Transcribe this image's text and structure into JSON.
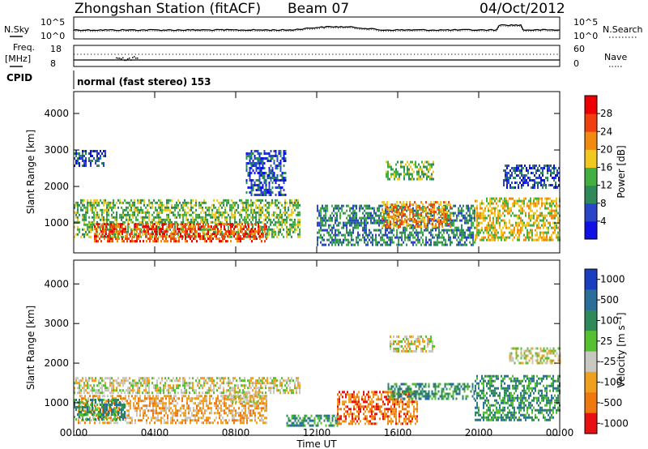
{
  "header": {
    "station": "Zhongshan Station (fitACF)",
    "beam": "Beam 07",
    "date": "04/Oct/2012"
  },
  "top_panels": {
    "nsky_label": "N.Sky",
    "nsky_ticks": [
      "10^5",
      "10^0"
    ],
    "nsearch_label": "N.Search",
    "nsearch_ticks": [
      "10^5",
      "10^0"
    ],
    "freq_label_1": "Freq.",
    "freq_label_2": "[MHz]",
    "freq_ticks": [
      "18",
      "8"
    ],
    "nave_label": "Nave",
    "nave_ticks": [
      "60",
      "0"
    ],
    "cpid_label": "CPID",
    "cpid_value": "normal (fast stereo) 153"
  },
  "chart_data": [
    {
      "type": "heatmap",
      "name": "power",
      "ylabel": "Slant Range [km]",
      "xlabel": "Time UT",
      "x_ticks": [
        "00:00",
        "04:00",
        "08:00",
        "12:00",
        "16:00",
        "20:00",
        "00:00"
      ],
      "y_ticks": [
        1000,
        2000,
        3000,
        4000
      ],
      "xlim_hours": [
        0,
        24
      ],
      "ylim_km": [
        180,
        4600
      ],
      "colorbar": {
        "label": "Power [dB]",
        "ticks": [
          "4",
          "8",
          "12",
          "16",
          "20",
          "24",
          "28"
        ],
        "colors": [
          "#1010e6",
          "#2a46c8",
          "#2f8a5a",
          "#41b040",
          "#f0c820",
          "#f08a10",
          "#f04010",
          "#ee0000"
        ]
      },
      "echo_regions": [
        {
          "t0": 0.0,
          "t1": 11.2,
          "r0": 600,
          "r1": 1650,
          "level": 3
        },
        {
          "t0": 1.0,
          "t1": 9.5,
          "r0": 500,
          "r1": 1000,
          "level": 6
        },
        {
          "t0": 0.0,
          "t1": 1.6,
          "r0": 2600,
          "r1": 3000,
          "level": 1
        },
        {
          "t0": 8.5,
          "t1": 10.5,
          "r0": 1800,
          "r1": 3000,
          "level": 1
        },
        {
          "t0": 12.0,
          "t1": 19.8,
          "r0": 400,
          "r1": 1500,
          "level": 2
        },
        {
          "t0": 15.2,
          "t1": 18.6,
          "r0": 900,
          "r1": 1600,
          "level": 5
        },
        {
          "t0": 15.4,
          "t1": 17.8,
          "r0": 2200,
          "r1": 2700,
          "level": 3
        },
        {
          "t0": 19.8,
          "t1": 24.0,
          "r0": 550,
          "r1": 1700,
          "level": 4
        },
        {
          "t0": 21.2,
          "t1": 24.0,
          "r0": 2000,
          "r1": 2600,
          "level": 1
        }
      ]
    },
    {
      "type": "heatmap",
      "name": "velocity",
      "ylabel": "Slant Range [km]",
      "xlabel": "Time UT",
      "x_ticks": [
        "00:00",
        "04:00",
        "08:00",
        "12:00",
        "16:00",
        "20:00",
        "00:00"
      ],
      "y_ticks": [
        1000,
        2000,
        3000,
        4000
      ],
      "xlim_hours": [
        0,
        24
      ],
      "ylim_km": [
        180,
        4600
      ],
      "colorbar": {
        "label": "Velocity [m s⁻¹]",
        "ticks": [
          "1000",
          "500",
          "100",
          "25",
          "-25",
          "-100",
          "-500",
          "-1000"
        ],
        "colors": [
          "#1a3ec0",
          "#2a6e9a",
          "#2f8a5a",
          "#55c030",
          "#c8c8c0",
          "#f0a020",
          "#f07810",
          "#e81010"
        ]
      },
      "echo_regions": [
        {
          "t0": 0.0,
          "t1": 11.2,
          "r0": 1250,
          "r1": 1650,
          "level": 4
        },
        {
          "t0": 0.2,
          "t1": 9.5,
          "r0": 500,
          "r1": 1200,
          "level": 5
        },
        {
          "t0": 0.0,
          "t1": 2.5,
          "r0": 600,
          "r1": 1100,
          "level": 2
        },
        {
          "t0": 7.5,
          "t1": 9.2,
          "r0": 1000,
          "r1": 1300,
          "level": 4
        },
        {
          "t0": 10.5,
          "t1": 13.0,
          "r0": 400,
          "r1": 700,
          "level": 2
        },
        {
          "t0": 13.0,
          "t1": 17.0,
          "r0": 500,
          "r1": 1300,
          "level": 6
        },
        {
          "t0": 15.5,
          "t1": 19.8,
          "r0": 1100,
          "r1": 1500,
          "level": 2
        },
        {
          "t0": 15.6,
          "t1": 17.8,
          "r0": 2300,
          "r1": 2700,
          "level": 4
        },
        {
          "t0": 19.8,
          "t1": 24.0,
          "r0": 550,
          "r1": 1700,
          "level": 2
        },
        {
          "t0": 21.5,
          "t1": 24.0,
          "r0": 2000,
          "r1": 2400,
          "level": 4
        }
      ]
    }
  ]
}
